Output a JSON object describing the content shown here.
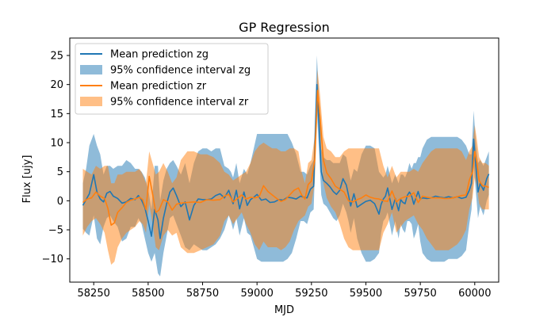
{
  "chart_data": {
    "type": "line",
    "title": "GP Regression",
    "xlabel": "MJD",
    "ylabel": "Flux [ujy]",
    "xlim": [
      58140,
      60110
    ],
    "ylim": [
      -14,
      28
    ],
    "xticks": [
      58250,
      58500,
      58750,
      59000,
      59250,
      59500,
      59750,
      60000
    ],
    "yticks": [
      -10,
      -5,
      0,
      5,
      10,
      15,
      20,
      25
    ],
    "grid": false,
    "legend_position": "top-left",
    "colors": {
      "zg": "#1f77b4",
      "zr": "#ff7f0e"
    },
    "series": [
      {
        "name": "Mean prediction zg",
        "kind": "line",
        "band": "zg",
        "x": [
          58200,
          58215,
          58230,
          58250,
          58265,
          58280,
          58295,
          58310,
          58325,
          58340,
          58360,
          58380,
          58400,
          58420,
          58440,
          58455,
          58470,
          58485,
          58500,
          58515,
          58530,
          58545,
          58555,
          58570,
          58585,
          58600,
          58615,
          58630,
          58650,
          58670,
          58690,
          58710,
          58730,
          58750,
          58770,
          58790,
          58810,
          58830,
          58850,
          58870,
          58880,
          58890,
          58905,
          58920,
          58940,
          58955,
          58970,
          58985,
          59000,
          59020,
          59040,
          59060,
          59080,
          59100,
          59120,
          59140,
          59160,
          59180,
          59200,
          59215,
          59230,
          59245,
          59260,
          59275,
          59285,
          59295,
          59305,
          59320,
          59335,
          59350,
          59365,
          59380,
          59395,
          59410,
          59420,
          59430,
          59445,
          59460,
          59480,
          59500,
          59520,
          59540,
          59560,
          59570,
          59580,
          59590,
          59600,
          59610,
          59620,
          59635,
          59650,
          59660,
          59670,
          59680,
          59690,
          59700,
          59710,
          59720,
          59730,
          59740,
          59750,
          59760,
          59780,
          59800,
          59820,
          59840,
          59860,
          59880,
          59900,
          59920,
          59940,
          59960,
          59975,
          59985,
          59995,
          60005,
          60015,
          60025,
          60040,
          60055,
          60065
        ],
        "y": [
          -0.8,
          0.2,
          1.2,
          4.5,
          1.5,
          0.3,
          -0.2,
          1.3,
          1.6,
          0.8,
          0.4,
          -0.4,
          -0.2,
          0.4,
          0.2,
          0.9,
          0.1,
          -1.2,
          -3.5,
          -6.1,
          -1.5,
          -3.3,
          -6.5,
          -3.0,
          -0.5,
          1.5,
          2.2,
          0.9,
          -1.0,
          -0.2,
          -3.3,
          -0.8,
          0.3,
          0.2,
          0.2,
          0.3,
          0.9,
          1.2,
          0.5,
          1.8,
          0.7,
          -0.5,
          1.8,
          -1.4,
          1.5,
          -0.8,
          0.2,
          0.6,
          1.1,
          0.1,
          0.3,
          -0.3,
          -0.2,
          0.2,
          0.1,
          0.6,
          0.5,
          0.3,
          0.8,
          0.6,
          0.5,
          2.0,
          2.5,
          20.0,
          13.0,
          5.0,
          3.5,
          3.0,
          2.4,
          1.6,
          1.1,
          1.8,
          3.8,
          2.7,
          1.0,
          -0.9,
          1.2,
          -1.1,
          -0.6,
          -0.1,
          0.1,
          -0.5,
          -2.3,
          -0.6,
          0.3,
          0.8,
          2.2,
          0.3,
          -1.5,
          0.4,
          -1.7,
          0.2,
          -0.3,
          -0.5,
          0.9,
          1.5,
          0.8,
          -0.6,
          0.5,
          1.6,
          0.3,
          0.5,
          0.4,
          0.5,
          0.8,
          0.6,
          0.5,
          0.7,
          0.5,
          0.7,
          0.4,
          0.6,
          1.8,
          3.0,
          10.6,
          6.0,
          1.5,
          3.0,
          1.8,
          3.8,
          4.6
        ]
      },
      {
        "name": "95% confidence interval zg",
        "kind": "band",
        "band": "zg",
        "x": [
          58200,
          58215,
          58230,
          58250,
          58265,
          58280,
          58295,
          58310,
          58325,
          58340,
          58360,
          58380,
          58400,
          58420,
          58440,
          58455,
          58470,
          58485,
          58500,
          58515,
          58530,
          58545,
          58555,
          58570,
          58585,
          58600,
          58615,
          58630,
          58650,
          58670,
          58690,
          58710,
          58730,
          58750,
          58770,
          58790,
          58810,
          58830,
          58850,
          58870,
          58880,
          58890,
          58905,
          58920,
          58940,
          58955,
          58970,
          58985,
          59000,
          59020,
          59040,
          59060,
          59080,
          59100,
          59120,
          59140,
          59160,
          59180,
          59200,
          59215,
          59230,
          59245,
          59260,
          59275,
          59285,
          59295,
          59305,
          59320,
          59335,
          59350,
          59365,
          59380,
          59395,
          59410,
          59420,
          59430,
          59445,
          59460,
          59480,
          59500,
          59520,
          59540,
          59560,
          59570,
          59580,
          59590,
          59600,
          59610,
          59620,
          59635,
          59650,
          59660,
          59670,
          59680,
          59690,
          59700,
          59710,
          59720,
          59730,
          59740,
          59750,
          59760,
          59780,
          59800,
          59820,
          59840,
          59860,
          59880,
          59900,
          59920,
          59940,
          59960,
          59975,
          59985,
          59995,
          60005,
          60015,
          60025,
          60040,
          60055,
          60065
        ],
        "lower": [
          -4.8,
          -5.5,
          -6.0,
          -2.5,
          -6.5,
          -7.5,
          -4.5,
          -3.0,
          -2.5,
          -3.5,
          -4.5,
          -7.0,
          -6.5,
          -4.5,
          -4.5,
          -3.0,
          -4.0,
          -6.5,
          -9.0,
          -10.5,
          -9.0,
          -12.5,
          -13.0,
          -9.0,
          -6.0,
          -3.0,
          -2.5,
          -4.0,
          -6.0,
          -8.0,
          -8.5,
          -7.5,
          -8.0,
          -8.5,
          -8.5,
          -8.0,
          -7.5,
          -6.5,
          -5.0,
          -2.5,
          -3.5,
          -5.0,
          -3.0,
          -6.0,
          -3.0,
          -5.5,
          -6.0,
          -8.0,
          -10.0,
          -10.5,
          -10.5,
          -10.5,
          -10.5,
          -10.5,
          -10.5,
          -10.0,
          -9.0,
          -6.5,
          -3.5,
          -3.5,
          -4.0,
          -2.0,
          -1.5,
          15.5,
          8.5,
          1.0,
          -0.5,
          -1.0,
          -2.0,
          -3.0,
          -3.5,
          -2.5,
          -0.5,
          -2.0,
          -3.5,
          -5.5,
          -3.0,
          -6.5,
          -9.0,
          -10.5,
          -10.5,
          -10.0,
          -9.0,
          -5.5,
          -3.5,
          -3.0,
          -2.0,
          -4.0,
          -6.0,
          -3.5,
          -6.5,
          -4.0,
          -5.0,
          -5.5,
          -3.5,
          -3.5,
          -4.0,
          -6.5,
          -5.5,
          -4.0,
          -7.0,
          -9.0,
          -10.0,
          -10.5,
          -10.5,
          -10.5,
          -10.5,
          -10.0,
          -10.0,
          -10.0,
          -9.5,
          -8.5,
          -4.0,
          -1.5,
          6.0,
          1.5,
          -3.0,
          -1.0,
          -2.5,
          0.0,
          1.0
        ],
        "upper": [
          3.0,
          5.5,
          9.5,
          11.5,
          9.5,
          8.0,
          4.5,
          6.0,
          6.0,
          5.5,
          6.0,
          6.0,
          7.0,
          6.5,
          5.5,
          5.5,
          5.0,
          4.0,
          2.0,
          -1.5,
          6.0,
          6.0,
          0.0,
          3.5,
          5.5,
          6.5,
          7.0,
          6.0,
          4.5,
          6.5,
          3.0,
          6.5,
          8.5,
          9.0,
          9.0,
          8.5,
          9.0,
          9.0,
          6.0,
          5.5,
          5.0,
          4.0,
          6.5,
          3.0,
          5.5,
          4.5,
          6.5,
          9.0,
          11.5,
          11.5,
          11.5,
          11.5,
          11.5,
          11.5,
          11.5,
          11.5,
          10.0,
          8.0,
          5.0,
          5.0,
          4.5,
          6.0,
          7.0,
          25.0,
          17.5,
          9.0,
          7.5,
          7.0,
          7.0,
          6.5,
          6.5,
          6.5,
          8.0,
          7.5,
          5.5,
          3.5,
          5.5,
          5.0,
          8.0,
          9.5,
          9.5,
          9.0,
          5.0,
          4.5,
          4.0,
          4.5,
          6.0,
          4.5,
          3.0,
          4.5,
          3.0,
          4.5,
          4.5,
          4.0,
          5.0,
          6.5,
          5.5,
          6.5,
          6.5,
          7.5,
          7.5,
          9.0,
          10.5,
          11.0,
          11.0,
          11.0,
          11.0,
          11.0,
          11.0,
          11.0,
          10.5,
          9.5,
          8.0,
          8.0,
          15.5,
          10.0,
          6.5,
          7.0,
          6.0,
          7.5,
          8.5
        ]
      },
      {
        "name": "Mean prediction zr",
        "kind": "line",
        "band": "zr",
        "x": [
          58200,
          58220,
          58240,
          58260,
          58280,
          58300,
          58315,
          58330,
          58345,
          58360,
          58380,
          58400,
          58420,
          58440,
          58460,
          58475,
          58490,
          58505,
          58520,
          58535,
          58550,
          58570,
          58590,
          58610,
          58630,
          58650,
          58680,
          58710,
          58740,
          58770,
          58800,
          58830,
          58850,
          58870,
          58890,
          58910,
          58930,
          58950,
          58970,
          58990,
          59010,
          59030,
          59050,
          59070,
          59090,
          59110,
          59130,
          59150,
          59170,
          59190,
          59205,
          59220,
          59235,
          59250,
          59265,
          59278,
          59290,
          59305,
          59320,
          59340,
          59360,
          59380,
          59400,
          59420,
          59440,
          59460,
          59480,
          59500,
          59520,
          59540,
          59560,
          59580,
          59600,
          59620,
          59640,
          59660,
          59680,
          59700,
          59720,
          59740,
          59760,
          59780,
          59800,
          59820,
          59840,
          59860,
          59880,
          59900,
          59920,
          59940,
          59960,
          59975,
          59990,
          60000,
          60010,
          60020,
          60035,
          60050,
          60065
        ],
        "y": [
          -0.3,
          0.3,
          0.5,
          1.5,
          0.8,
          0.4,
          -1.3,
          -4.2,
          -3.8,
          -2.0,
          -1.2,
          -0.3,
          0.1,
          0.3,
          0.6,
          0.2,
          -1.5,
          4.2,
          1.2,
          -2.0,
          -1.6,
          0.2,
          -0.2,
          -1.6,
          -0.6,
          -0.4,
          -0.3,
          -0.2,
          -0.3,
          0.2,
          0.1,
          0.2,
          0.8,
          1.1,
          -0.2,
          0.4,
          1.0,
          0.3,
          0.6,
          0.5,
          0.7,
          2.6,
          1.6,
          1.0,
          0.4,
          -0.1,
          0.2,
          1.0,
          1.8,
          2.2,
          1.0,
          0.3,
          2.8,
          3.4,
          7.0,
          19.0,
          14.0,
          7.0,
          4.8,
          3.8,
          2.5,
          2.0,
          1.5,
          0.0,
          -0.2,
          0.2,
          0.5,
          1.0,
          0.6,
          0.4,
          0.3,
          0.0,
          -0.1,
          1.7,
          -0.2,
          0.4,
          0.7,
          0.8,
          1.4,
          -0.3,
          0.8,
          0.6,
          0.5,
          0.5,
          0.5,
          0.4,
          0.4,
          0.5,
          0.7,
          0.9,
          1.0,
          3.5,
          5.0,
          8.5,
          6.5,
          3.5,
          2.6,
          2.5,
          2.3
        ],
        "_": ""
      },
      {
        "name": "95% confidence interval zr",
        "kind": "band",
        "band": "zr",
        "x": [
          58200,
          58220,
          58240,
          58260,
          58280,
          58300,
          58315,
          58330,
          58345,
          58360,
          58380,
          58400,
          58420,
          58440,
          58460,
          58475,
          58490,
          58505,
          58520,
          58535,
          58550,
          58570,
          58590,
          58610,
          58630,
          58650,
          58680,
          58710,
          58740,
          58770,
          58800,
          58830,
          58850,
          58870,
          58890,
          58910,
          58930,
          58950,
          58970,
          58990,
          59010,
          59030,
          59050,
          59070,
          59090,
          59110,
          59130,
          59150,
          59170,
          59190,
          59205,
          59220,
          59235,
          59250,
          59265,
          59278,
          59290,
          59305,
          59320,
          59340,
          59360,
          59380,
          59400,
          59420,
          59440,
          59460,
          59480,
          59500,
          59520,
          59540,
          59560,
          59580,
          59600,
          59620,
          59640,
          59660,
          59680,
          59700,
          59720,
          59740,
          59760,
          59780,
          59800,
          59820,
          59840,
          59860,
          59880,
          59900,
          59920,
          59940,
          59960,
          59975,
          59990,
          60000,
          60010,
          60020,
          60035,
          60050,
          60065
        ],
        "lower": [
          -6.0,
          -4.5,
          -3.5,
          -3.0,
          -4.0,
          -5.5,
          -8.5,
          -11.0,
          -10.5,
          -8.0,
          -6.5,
          -5.5,
          -5.0,
          -4.5,
          -3.5,
          -4.0,
          -5.5,
          -0.5,
          -4.0,
          -8.0,
          -8.5,
          -6.0,
          -5.0,
          -6.0,
          -5.5,
          -8.0,
          -9.0,
          -9.0,
          -8.5,
          -8.0,
          -7.5,
          -6.0,
          -3.5,
          -2.5,
          -4.0,
          -3.0,
          -2.0,
          -4.0,
          -5.5,
          -7.5,
          -8.5,
          -7.0,
          -8.0,
          -8.0,
          -8.0,
          -8.5,
          -8.0,
          -7.0,
          -5.0,
          -3.5,
          -3.0,
          -2.5,
          -1.0,
          -0.5,
          3.0,
          15.5,
          10.5,
          3.0,
          0.5,
          -1.0,
          -2.0,
          -4.0,
          -6.5,
          -8.0,
          -8.5,
          -8.5,
          -8.5,
          -8.5,
          -8.5,
          -8.5,
          -8.5,
          -5.5,
          -4.0,
          -2.0,
          -5.5,
          -4.5,
          -3.5,
          -3.0,
          -2.5,
          -4.0,
          -5.0,
          -6.5,
          -7.5,
          -8.5,
          -8.5,
          -8.5,
          -8.5,
          -8.0,
          -7.5,
          -6.5,
          -5.0,
          -1.5,
          0.5,
          4.0,
          2.5,
          -0.5,
          -1.5,
          -1.5,
          -1.5
        ],
        "upper": [
          5.5,
          5.0,
          4.5,
          6.0,
          5.5,
          6.0,
          6.0,
          3.0,
          3.0,
          4.5,
          4.5,
          5.0,
          5.0,
          5.0,
          5.5,
          4.5,
          3.0,
          8.5,
          6.5,
          4.5,
          5.0,
          6.5,
          5.0,
          3.0,
          4.0,
          7.0,
          8.5,
          8.5,
          8.0,
          8.0,
          7.5,
          6.5,
          5.0,
          4.5,
          3.5,
          4.0,
          4.5,
          5.0,
          6.5,
          8.5,
          9.5,
          10.0,
          9.5,
          9.0,
          9.0,
          8.5,
          8.5,
          9.0,
          9.0,
          8.5,
          5.0,
          3.0,
          6.5,
          7.0,
          11.0,
          22.5,
          18.0,
          11.0,
          9.0,
          8.5,
          7.5,
          7.5,
          8.5,
          9.0,
          9.0,
          9.0,
          9.0,
          9.0,
          9.0,
          9.0,
          9.0,
          6.0,
          4.0,
          6.0,
          4.0,
          5.0,
          5.0,
          5.0,
          5.5,
          5.0,
          6.5,
          7.5,
          8.5,
          9.0,
          9.0,
          9.0,
          9.0,
          9.0,
          9.0,
          8.5,
          7.0,
          8.5,
          9.5,
          13.0,
          10.5,
          7.5,
          6.5,
          6.5,
          6.0
        ]
      }
    ]
  }
}
